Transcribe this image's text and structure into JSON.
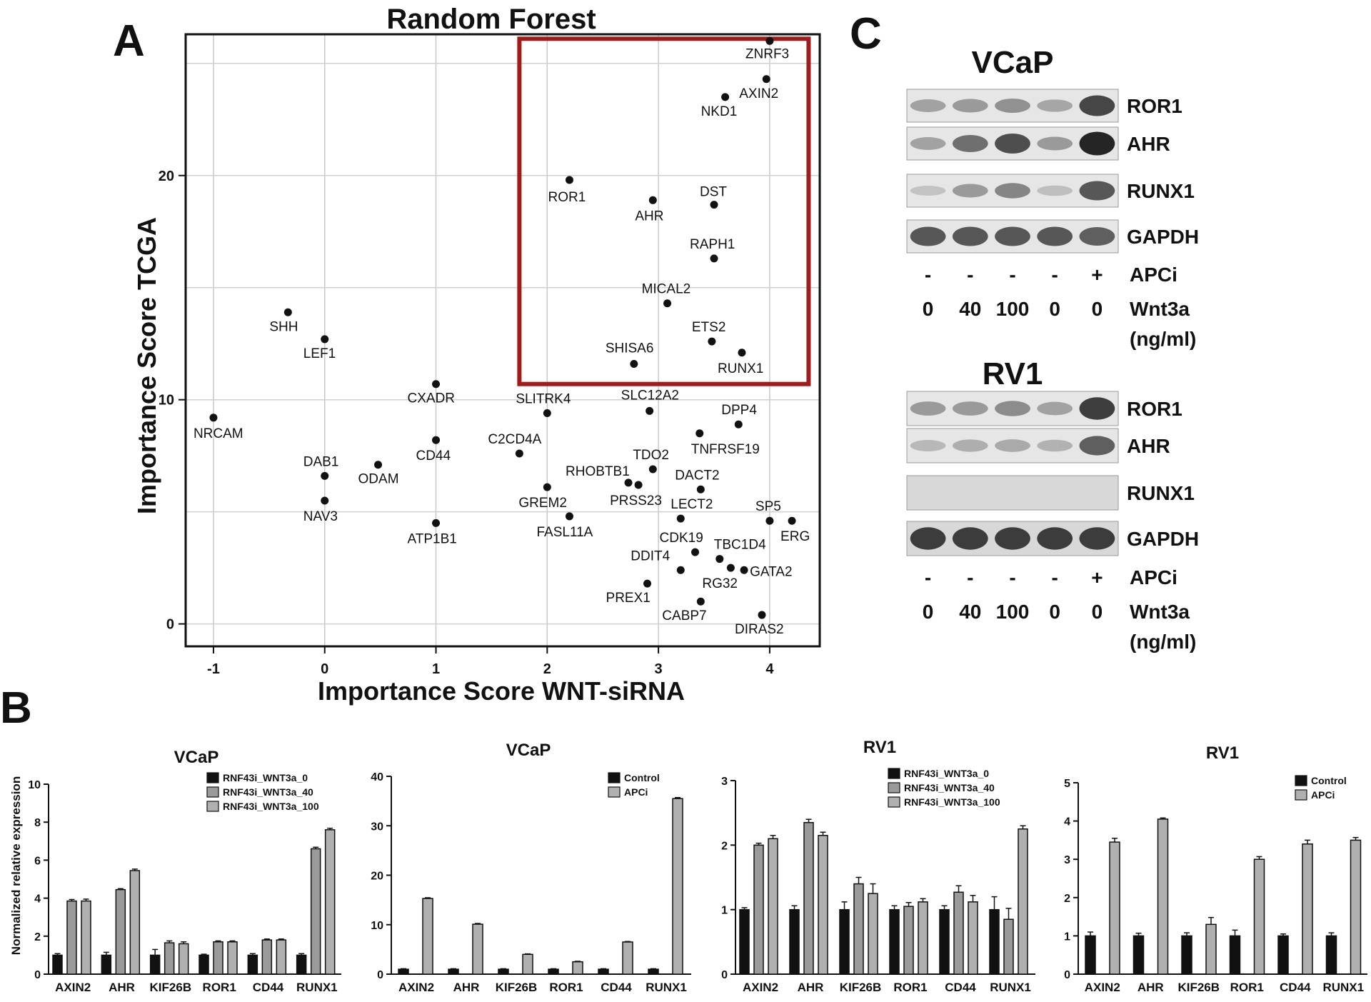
{
  "panel_labels": {
    "a": "A",
    "b": "B",
    "c": "C"
  },
  "chart_data": [
    {
      "id": "scatter",
      "type": "scatter",
      "title": "Random Forest",
      "xlabel": "Importance Score WNT-siRNA",
      "ylabel": "Importance Score TCGA",
      "xlim": [
        -1.25,
        4.45
      ],
      "ylim": [
        -1,
        26.3
      ],
      "x_ticks": [
        "-1",
        "0",
        "1",
        "2",
        "3",
        "4"
      ],
      "x_tick_values": [
        -1,
        0,
        1,
        2,
        3,
        4
      ],
      "y_ticks": [
        "0",
        "10",
        "20"
      ],
      "y_tick_values": [
        0,
        10,
        20
      ],
      "grid": true,
      "highlight_box": {
        "x": [
          1.75,
          4.35
        ],
        "y": [
          10.7,
          26.1
        ],
        "color": "#a31a1a"
      },
      "points": [
        {
          "label": "ZNRF3",
          "x": 4.0,
          "y": 26.0
        },
        {
          "label": "AXIN2",
          "x": 3.97,
          "y": 24.3
        },
        {
          "label": "NKD1",
          "x": 3.6,
          "y": 23.5
        },
        {
          "label": "ROR1",
          "x": 2.2,
          "y": 19.8
        },
        {
          "label": "AHR",
          "x": 2.95,
          "y": 18.9
        },
        {
          "label": "DST",
          "x": 3.5,
          "y": 18.7
        },
        {
          "label": "RAPH1",
          "x": 3.5,
          "y": 16.3
        },
        {
          "label": "MICAL2",
          "x": 3.08,
          "y": 14.3
        },
        {
          "label": "ETS2",
          "x": 3.48,
          "y": 12.6
        },
        {
          "label": "RUNX1",
          "x": 3.75,
          "y": 12.1
        },
        {
          "label": "SHISA6",
          "x": 2.78,
          "y": 11.6
        },
        {
          "label": "SHH",
          "x": -0.33,
          "y": 13.9
        },
        {
          "label": "LEF1",
          "x": 0.0,
          "y": 12.7
        },
        {
          "label": "NRCAM",
          "x": -1.0,
          "y": 9.2
        },
        {
          "label": "CXADR",
          "x": 1.0,
          "y": 10.7
        },
        {
          "label": "SLITRK4",
          "x": 2.0,
          "y": 9.4
        },
        {
          "label": "SLC12A2",
          "x": 2.92,
          "y": 9.5
        },
        {
          "label": "DPP4",
          "x": 3.72,
          "y": 8.9
        },
        {
          "label": "TNFRSF19",
          "x": 3.37,
          "y": 8.5
        },
        {
          "label": "CD44",
          "x": 1.0,
          "y": 8.2
        },
        {
          "label": "C2CD4A",
          "x": 1.75,
          "y": 7.6
        },
        {
          "label": "TDO2",
          "x": 2.95,
          "y": 6.9
        },
        {
          "label": "ODAM",
          "x": 0.48,
          "y": 7.1
        },
        {
          "label": "DAB1",
          "x": 0.0,
          "y": 6.6
        },
        {
          "label": "RHOBTB1",
          "x": 2.73,
          "y": 6.3
        },
        {
          "label": "PRSS23",
          "x": 2.82,
          "y": 6.2
        },
        {
          "label": "GREM2",
          "x": 2.0,
          "y": 6.1
        },
        {
          "label": "DACT2",
          "x": 3.38,
          "y": 6.0
        },
        {
          "label": "NAV3",
          "x": 0.0,
          "y": 5.5
        },
        {
          "label": "LECT2",
          "x": 3.2,
          "y": 4.7
        },
        {
          "label": "FASL11A",
          "x": 2.2,
          "y": 4.8
        },
        {
          "label": "SP5",
          "x": 4.0,
          "y": 4.6
        },
        {
          "label": "ERG",
          "x": 4.2,
          "y": 4.6
        },
        {
          "label": "ATP1B1",
          "x": 1.0,
          "y": 4.5
        },
        {
          "label": "CDK19",
          "x": 3.33,
          "y": 3.2
        },
        {
          "label": "TBC1D4",
          "x": 3.55,
          "y": 2.9
        },
        {
          "label": "DDIT4",
          "x": 3.2,
          "y": 2.4
        },
        {
          "label": "RG32",
          "x": 3.65,
          "y": 2.5
        },
        {
          "label": "GATA2",
          "x": 3.77,
          "y": 2.4
        },
        {
          "label": "PREX1",
          "x": 2.9,
          "y": 1.8
        },
        {
          "label": "CABP7",
          "x": 3.38,
          "y": 1.0
        },
        {
          "label": "DIRAS2",
          "x": 3.93,
          "y": 0.4
        }
      ]
    },
    {
      "id": "bar1",
      "type": "bar",
      "title": "VCaP",
      "ylabel": "Normalized relative expression",
      "ylim": [
        0,
        10
      ],
      "y_ticks": [
        0,
        2,
        4,
        6,
        8,
        10
      ],
      "categories": [
        "AXIN2",
        "AHR",
        "KIF26B",
        "ROR1",
        "CD44",
        "RUNX1"
      ],
      "legend_position": "top-right",
      "series": [
        {
          "name": "RNF43i_WNT3a_0",
          "values": [
            1,
            1,
            1,
            1,
            1,
            1
          ],
          "errors": [
            0.08,
            0.15,
            0.3,
            0.05,
            0.08,
            0.08
          ]
        },
        {
          "name": "RNF43i_WNT3a_40",
          "values": [
            3.85,
            4.45,
            1.65,
            1.7,
            1.8,
            6.6
          ],
          "errors": [
            0.08,
            0.05,
            0.1,
            0.05,
            0.05,
            0.08
          ]
        },
        {
          "name": "RNF43i_WNT3a_100",
          "values": [
            3.85,
            5.45,
            1.6,
            1.7,
            1.8,
            7.6
          ],
          "errors": [
            0.1,
            0.08,
            0.1,
            0.05,
            0.05,
            0.08
          ]
        }
      ]
    },
    {
      "id": "bar2",
      "type": "bar",
      "title": "VCaP",
      "ylim": [
        0,
        40
      ],
      "y_ticks": [
        0,
        10,
        20,
        30,
        40
      ],
      "categories": [
        "AXIN2",
        "AHR",
        "KIF26B",
        "ROR1",
        "CD44",
        "RUNX1"
      ],
      "legend_position": "top-right",
      "series": [
        {
          "name": "Control",
          "values": [
            1,
            1,
            1,
            1,
            1,
            1
          ],
          "errors": [
            0.1,
            0.1,
            0.1,
            0.1,
            0.1,
            0.1
          ]
        },
        {
          "name": "APCi",
          "values": [
            15.3,
            10.1,
            4.0,
            2.5,
            6.5,
            35.5
          ],
          "errors": [
            0.15,
            0.15,
            0.1,
            0.1,
            0.1,
            0.2
          ]
        }
      ]
    },
    {
      "id": "bar3",
      "type": "bar",
      "title": "RV1",
      "ylim": [
        0,
        3
      ],
      "y_ticks": [
        0,
        1,
        2,
        3
      ],
      "categories": [
        "AXIN2",
        "AHR",
        "KIF26B",
        "ROR1",
        "CD44",
        "RUNX1"
      ],
      "legend_position": "top-right",
      "series": [
        {
          "name": "RNF43i_WNT3a_0",
          "values": [
            1,
            1,
            1,
            1,
            1,
            1
          ],
          "errors": [
            0.03,
            0.06,
            0.12,
            0.06,
            0.06,
            0.2
          ]
        },
        {
          "name": "RNF43i_WNT3a_40",
          "values": [
            2.0,
            2.35,
            1.4,
            1.05,
            1.27,
            0.85
          ],
          "errors": [
            0.03,
            0.05,
            0.1,
            0.06,
            0.1,
            0.17
          ]
        },
        {
          "name": "RNF43i_WNT3a_100",
          "values": [
            2.1,
            2.15,
            1.25,
            1.12,
            1.12,
            2.25
          ],
          "errors": [
            0.05,
            0.05,
            0.15,
            0.05,
            0.1,
            0.05
          ]
        }
      ]
    },
    {
      "id": "bar4",
      "type": "bar",
      "title": "RV1",
      "ylim": [
        0,
        5
      ],
      "y_ticks": [
        0,
        1,
        2,
        3,
        4,
        5
      ],
      "categories": [
        "AXIN2",
        "AHR",
        "KIF26B",
        "ROR1",
        "CD44",
        "RUNX1"
      ],
      "legend_position": "top-right",
      "series": [
        {
          "name": "Control",
          "values": [
            1,
            1,
            1,
            1,
            1,
            1
          ],
          "errors": [
            0.1,
            0.07,
            0.08,
            0.15,
            0.05,
            0.08
          ]
        },
        {
          "name": "APCi",
          "values": [
            3.45,
            4.05,
            1.3,
            3.0,
            3.4,
            3.5
          ],
          "errors": [
            0.1,
            0.03,
            0.18,
            0.07,
            0.1,
            0.07
          ]
        }
      ]
    }
  ],
  "blots": {
    "vcap": {
      "title": "VCaP",
      "rows": [
        "ROR1",
        "AHR",
        "RUNX1",
        "GAPDH"
      ],
      "intensity": [
        [
          0.25,
          0.3,
          0.35,
          0.22,
          0.8
        ],
        [
          0.25,
          0.55,
          0.75,
          0.3,
          1.0
        ],
        [
          0.05,
          0.3,
          0.42,
          0.08,
          0.7
        ],
        [
          0.7,
          0.7,
          0.7,
          0.7,
          0.65
        ]
      ],
      "apci": [
        "-",
        "-",
        "-",
        "-",
        "+"
      ],
      "apci_label": "APCi",
      "wnt": [
        "0",
        "40",
        "100",
        "0",
        "0"
      ],
      "wnt_label": "Wnt3a",
      "unit": "(ng/ml)"
    },
    "rv1": {
      "title": "RV1",
      "rows": [
        "ROR1",
        "AHR",
        "RUNX1",
        "GAPDH"
      ],
      "intensity": [
        [
          0.3,
          0.3,
          0.38,
          0.25,
          0.85
        ],
        [
          0.12,
          0.18,
          0.2,
          0.15,
          0.65
        ],
        [
          0.0,
          0.0,
          0.0,
          0.0,
          0.0
        ],
        [
          0.85,
          0.85,
          0.85,
          0.85,
          0.85
        ]
      ],
      "apci": [
        "-",
        "-",
        "-",
        "-",
        "+"
      ],
      "apci_label": "APCi",
      "wnt": [
        "0",
        "40",
        "100",
        "0",
        "0"
      ],
      "wnt_label": "Wnt3a",
      "unit": "(ng/ml)"
    }
  },
  "colors": {
    "box": "#a31a1a",
    "black_bar": "#111111",
    "mid_bar": "#8c8c8c",
    "light_bar": "#b4b4b4",
    "grid": "#cfcfcf"
  }
}
